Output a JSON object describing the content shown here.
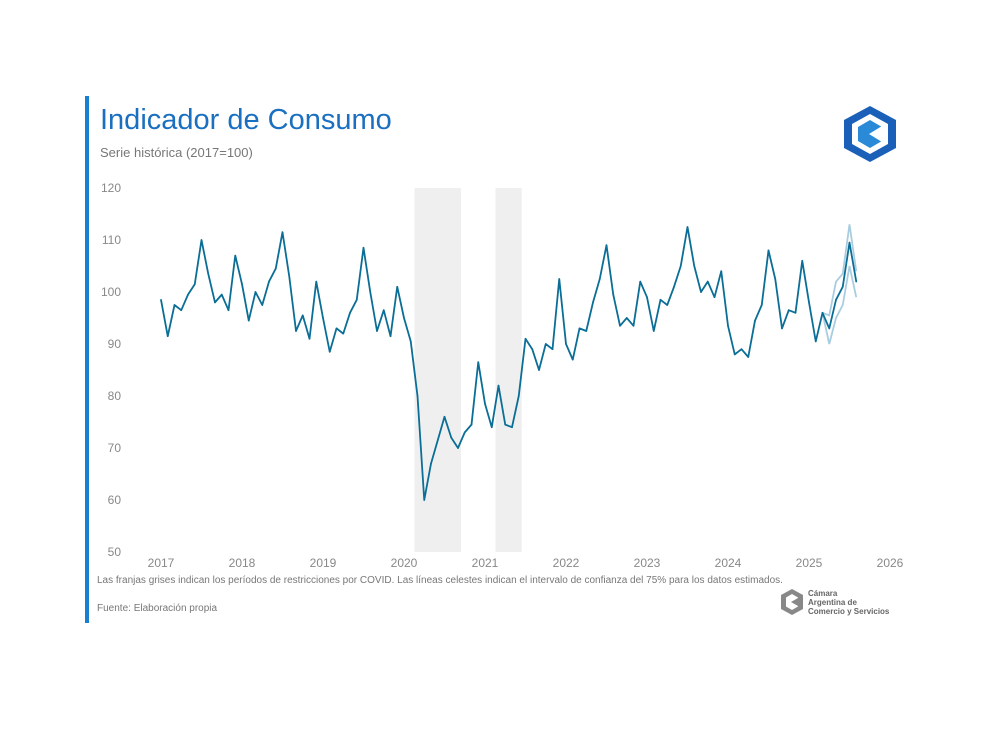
{
  "header": {
    "title": "Indicador de Consumo",
    "subtitle": "Serie histórica (2017=100)"
  },
  "footer": {
    "note": "Las franjas grises indican los períodos de restricciones por COVID. Las líneas celestes indican el intervalo de confianza del 75% para los datos estimados.",
    "source": "Fuente: Elaboración propia",
    "org_logo_text": [
      "Cámara",
      "Argentina de",
      "Comercio y Servicios"
    ]
  },
  "colors": {
    "series": "#0a6e96",
    "band": "#a9cde0",
    "shade": "#efefef",
    "accent": "#1a7fd0"
  },
  "chart_data": {
    "type": "line",
    "title": "Indicador de Consumo",
    "subtitle": "Serie histórica (2017=100)",
    "frequency": "monthly",
    "start": "2017-01",
    "ylim": [
      50,
      120
    ],
    "yticks": [
      "50",
      "60",
      "70",
      "80",
      "90",
      "100",
      "110",
      "120"
    ],
    "xticks": [
      "2017",
      "2018",
      "2019",
      "2020",
      "2021",
      "2022",
      "2023",
      "2024",
      "2025",
      "2026"
    ],
    "grid": false,
    "series": [
      {
        "values": [
          98.5,
          91.5,
          97.5,
          96.5,
          99.5,
          101.5,
          110,
          103.5,
          98,
          99.5,
          96.5,
          107,
          101.5,
          94.5,
          100,
          97.5,
          102,
          104.5,
          111.5,
          103,
          92.5,
          95.5,
          91,
          102,
          95,
          88.5,
          93,
          92,
          96,
          98.5,
          108.5,
          100,
          92.5,
          96.5,
          91.5,
          101,
          95,
          90.5,
          80,
          60,
          67,
          71.5,
          76,
          72,
          70,
          73,
          74.5,
          86.5,
          78.5,
          74,
          82,
          74.5,
          74,
          80,
          91,
          89,
          85,
          90,
          89,
          102.5,
          90,
          87,
          93,
          92.5,
          98,
          102.5,
          109,
          99.5,
          93.5,
          95,
          93.5,
          102,
          99,
          92.5,
          98.5,
          97.5,
          101,
          105,
          112.5,
          105,
          100,
          102,
          99,
          104,
          93.5,
          88,
          89,
          87.5,
          94.5,
          97.5,
          108,
          102.5,
          93,
          96.5,
          96,
          106,
          98,
          90.5,
          96,
          93,
          98.5,
          101,
          109.5,
          102
        ]
      }
    ],
    "confidence_interval_75": {
      "start": "2025-03",
      "upper": [
        96,
        95.5,
        102,
        103.5,
        113,
        104
      ],
      "lower": [
        96,
        90,
        95,
        97.5,
        105,
        99
      ]
    },
    "shaded_periods": [
      [
        "2020-03",
        "2020-09"
      ],
      [
        "2021-03",
        "2021-06"
      ]
    ]
  }
}
